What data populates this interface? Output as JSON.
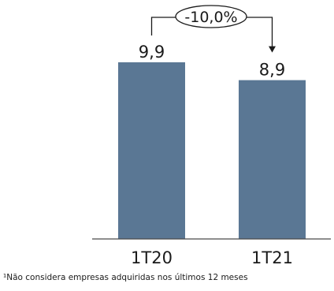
{
  "chart_data": {
    "type": "bar",
    "categories": [
      "1T20",
      "1T21"
    ],
    "values": [
      9.9,
      8.9
    ],
    "value_labels": [
      "9,9",
      "8,9"
    ],
    "ylim": [
      0,
      9.9
    ],
    "grid": false,
    "bar_color": "#5a7794",
    "annotation": {
      "text": "-10,0%",
      "from": "1T20",
      "to": "1T21"
    },
    "footnote": "¹Não considera empresas adquiridas nos últimos 12 meses"
  }
}
